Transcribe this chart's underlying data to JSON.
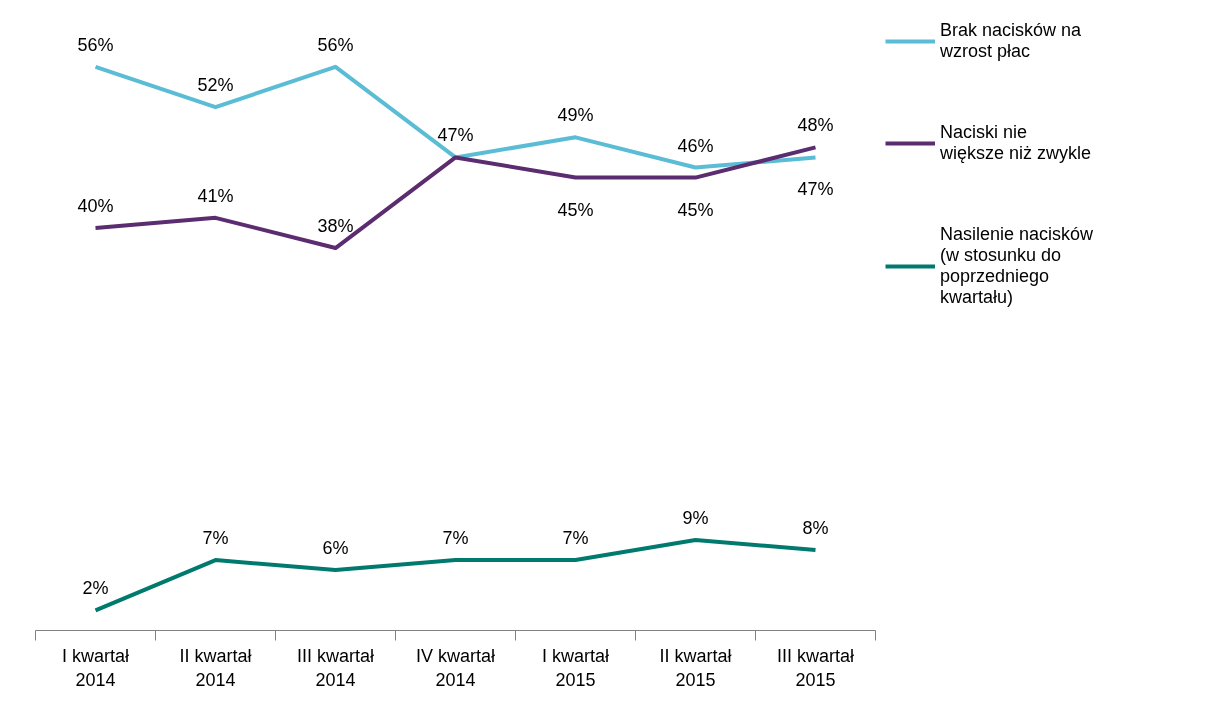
{
  "chart_data": {
    "type": "line",
    "categories": [
      "I kwartał 2014",
      "II kwartał 2014",
      "III kwartał 2014",
      "IV kwartał 2014",
      "I kwartał 2015",
      "II kwartał 2015",
      "III kwartał 2015"
    ],
    "series": [
      {
        "name": "Brak nacisków na wzrost płac",
        "color": "#5bbcd6",
        "values": [
          56,
          52,
          56,
          47,
          49,
          46,
          47
        ],
        "value_labels": [
          "56%",
          "52%",
          "56%",
          "47%",
          "49%",
          "46%",
          "47%"
        ]
      },
      {
        "name": "Naciski nie większe niż zwykle",
        "color": "#5b2c6f",
        "values": [
          40,
          41,
          38,
          47,
          45,
          45,
          48
        ],
        "value_labels": [
          "40%",
          "41%",
          "38%",
          null,
          "45%",
          "45%",
          "48%"
        ]
      },
      {
        "name": "Nasilenie nacisków (w stosunku do poprzedniego kwartału)",
        "color": "#007a6e",
        "values": [
          2,
          7,
          6,
          7,
          7,
          9,
          8
        ],
        "value_labels": [
          "2%",
          "7%",
          "6%",
          "7%",
          "7%",
          "9%",
          "8%"
        ]
      }
    ],
    "legend": "right",
    "grid": false,
    "marker": "none",
    "line_style": "solid"
  }
}
